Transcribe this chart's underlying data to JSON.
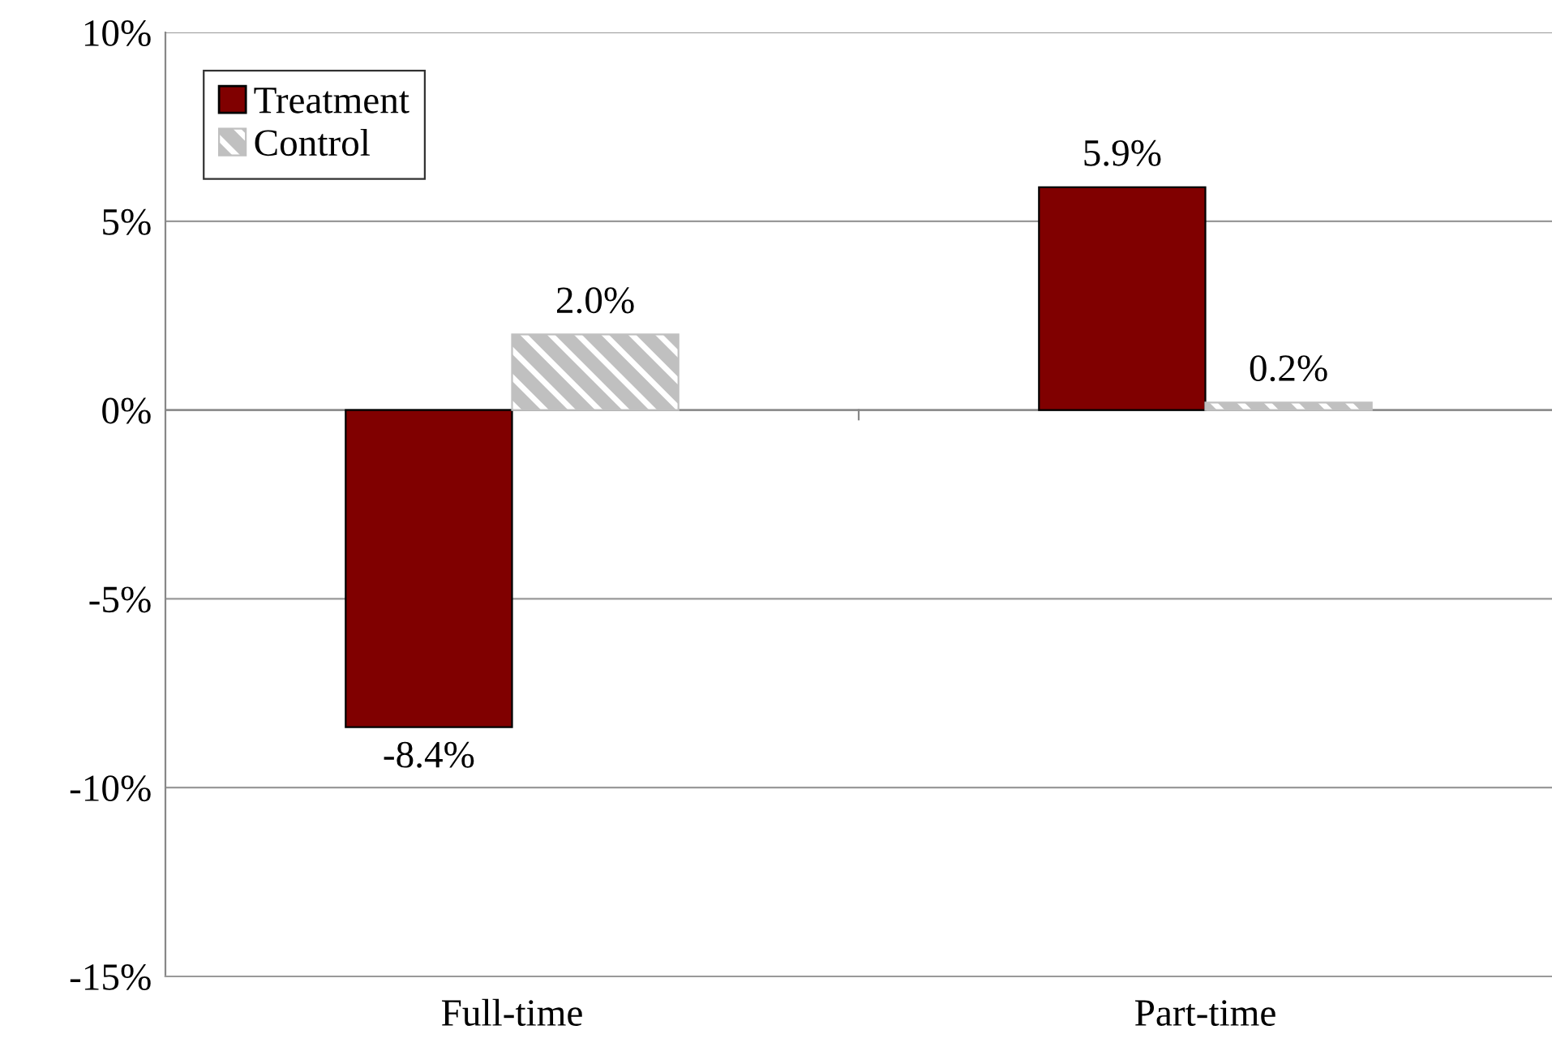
{
  "chart_data": {
    "type": "bar",
    "categories": [
      "Full-time",
      "Part-time"
    ],
    "series": [
      {
        "name": "Treatment",
        "color": "#800000",
        "values": [
          -8.4,
          5.9
        ],
        "value_labels": [
          "-8.4%",
          "5.9%"
        ]
      },
      {
        "name": "Control",
        "color": "#c0c0c0",
        "values": [
          2.0,
          0.2
        ],
        "value_labels": [
          "2.0%",
          "0.2%"
        ]
      }
    ],
    "ylim": [
      -15,
      10
    ],
    "yticks": [
      {
        "value": -15,
        "label": "-15%"
      },
      {
        "value": -10,
        "label": "-10%"
      },
      {
        "value": -5,
        "label": "-5%"
      },
      {
        "value": 0,
        "label": "0%"
      },
      {
        "value": 5,
        "label": "5%"
      },
      {
        "value": 10,
        "label": "10%"
      }
    ],
    "grid": "y",
    "legend": "top left"
  }
}
